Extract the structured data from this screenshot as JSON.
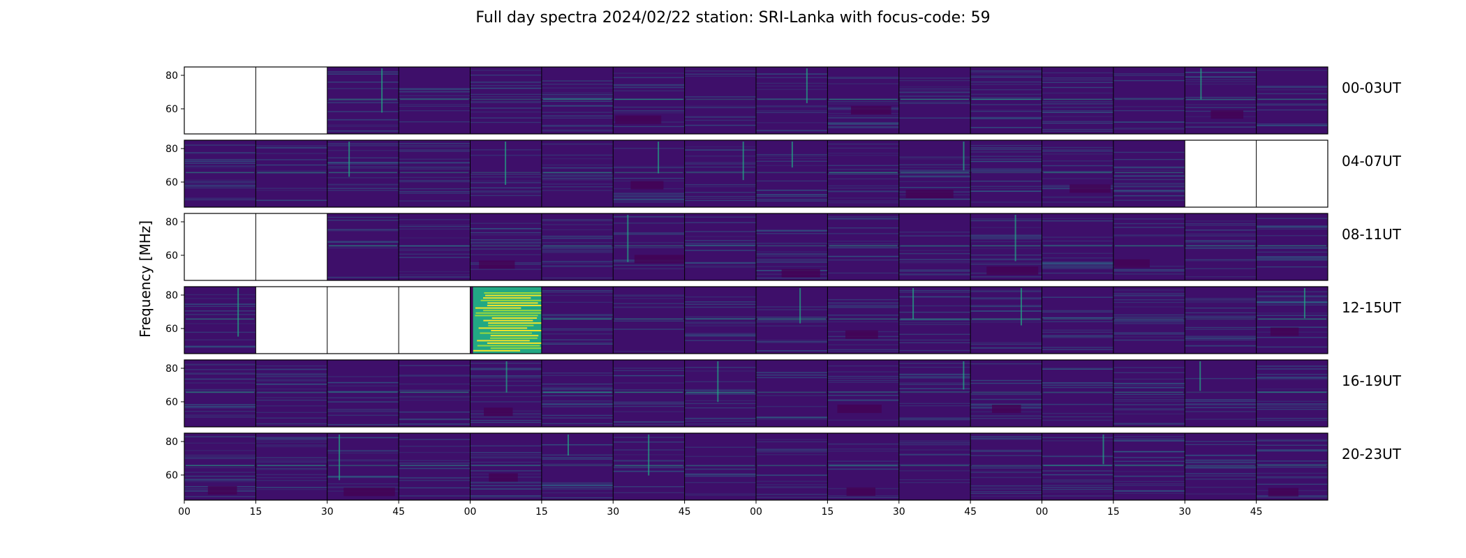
{
  "chart_data": {
    "type": "heatmap",
    "title": "Full day spectra 2024/02/22 station: SRI-Lanka with focus-code: 59",
    "ylabel": "Frequency [MHz]",
    "yticks": [
      "80",
      "60"
    ],
    "ylim": [
      45,
      85
    ],
    "xtick_labels": [
      "00",
      "15",
      "30",
      "45",
      "00",
      "15",
      "30",
      "45",
      "00",
      "15",
      "30",
      "45",
      "00",
      "15",
      "30",
      "45"
    ],
    "colormap": "viridis",
    "colors": {
      "low": "#440154",
      "background": "#3e0f6a",
      "line": "#2a788e",
      "bright": "#22a884",
      "high": "#fde725",
      "missing": "#ffffff"
    },
    "rows": [
      {
        "label": "00-03UT",
        "panels": [
          "missing",
          "missing",
          "data",
          "data",
          "data",
          "data",
          "data",
          "data",
          "data",
          "data",
          "data",
          "data",
          "data",
          "data",
          "data",
          "data"
        ]
      },
      {
        "label": "04-07UT",
        "panels": [
          "data",
          "data",
          "data",
          "data",
          "data",
          "data",
          "data",
          "data",
          "data",
          "data",
          "data",
          "data",
          "data",
          "data",
          "missing",
          "missing"
        ]
      },
      {
        "label": "08-11UT",
        "panels": [
          "missing",
          "missing",
          "data",
          "data",
          "data",
          "data",
          "data",
          "data",
          "data",
          "data",
          "data",
          "data",
          "data",
          "data",
          "data",
          "data"
        ]
      },
      {
        "label": "12-15UT",
        "panels": [
          "data",
          "missing",
          "missing",
          "missing",
          "burst",
          "data",
          "data",
          "data",
          "data",
          "data",
          "data",
          "data",
          "data",
          "data",
          "data",
          "data"
        ]
      },
      {
        "label": "16-19UT",
        "panels": [
          "data",
          "data",
          "data",
          "data",
          "data",
          "data",
          "data",
          "data",
          "data",
          "data",
          "data",
          "data",
          "data",
          "data",
          "data",
          "data"
        ]
      },
      {
        "label": "20-23UT",
        "panels": [
          "data",
          "data",
          "data",
          "data",
          "data",
          "data",
          "data",
          "data",
          "data",
          "data",
          "data",
          "data",
          "data",
          "data",
          "data",
          "data"
        ]
      }
    ]
  }
}
